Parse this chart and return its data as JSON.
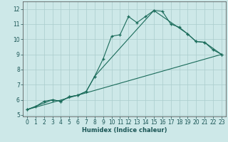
{
  "xlabel": "Humidex (Indice chaleur)",
  "xlim": [
    -0.5,
    23.5
  ],
  "ylim": [
    4.9,
    12.5
  ],
  "xticks": [
    0,
    1,
    2,
    3,
    4,
    5,
    6,
    7,
    8,
    9,
    10,
    11,
    12,
    13,
    14,
    15,
    16,
    17,
    18,
    19,
    20,
    21,
    22,
    23
  ],
  "yticks": [
    5,
    6,
    7,
    8,
    9,
    10,
    11,
    12
  ],
  "bg_color": "#cde8e8",
  "grid_color": "#aacccc",
  "line_color": "#1a6b5a",
  "line1_x": [
    0,
    1,
    2,
    3,
    4,
    5,
    6,
    7,
    8,
    9,
    10,
    11,
    12,
    13,
    14,
    15,
    16,
    17,
    18,
    19,
    20,
    21,
    22,
    23
  ],
  "line1_y": [
    5.35,
    5.55,
    5.9,
    6.0,
    5.9,
    6.2,
    6.3,
    6.55,
    7.55,
    8.7,
    10.2,
    10.3,
    11.5,
    11.1,
    11.5,
    11.9,
    11.85,
    11.0,
    10.8,
    10.35,
    9.85,
    9.8,
    9.3,
    9.0
  ],
  "line2_x": [
    0,
    3,
    4,
    5,
    6,
    7,
    8,
    15,
    19,
    20,
    21,
    23
  ],
  "line2_y": [
    5.35,
    6.0,
    5.9,
    6.2,
    6.3,
    6.55,
    7.55,
    11.9,
    10.35,
    9.85,
    9.8,
    9.0
  ],
  "line3_x": [
    0,
    23
  ],
  "line3_y": [
    5.35,
    9.0
  ]
}
